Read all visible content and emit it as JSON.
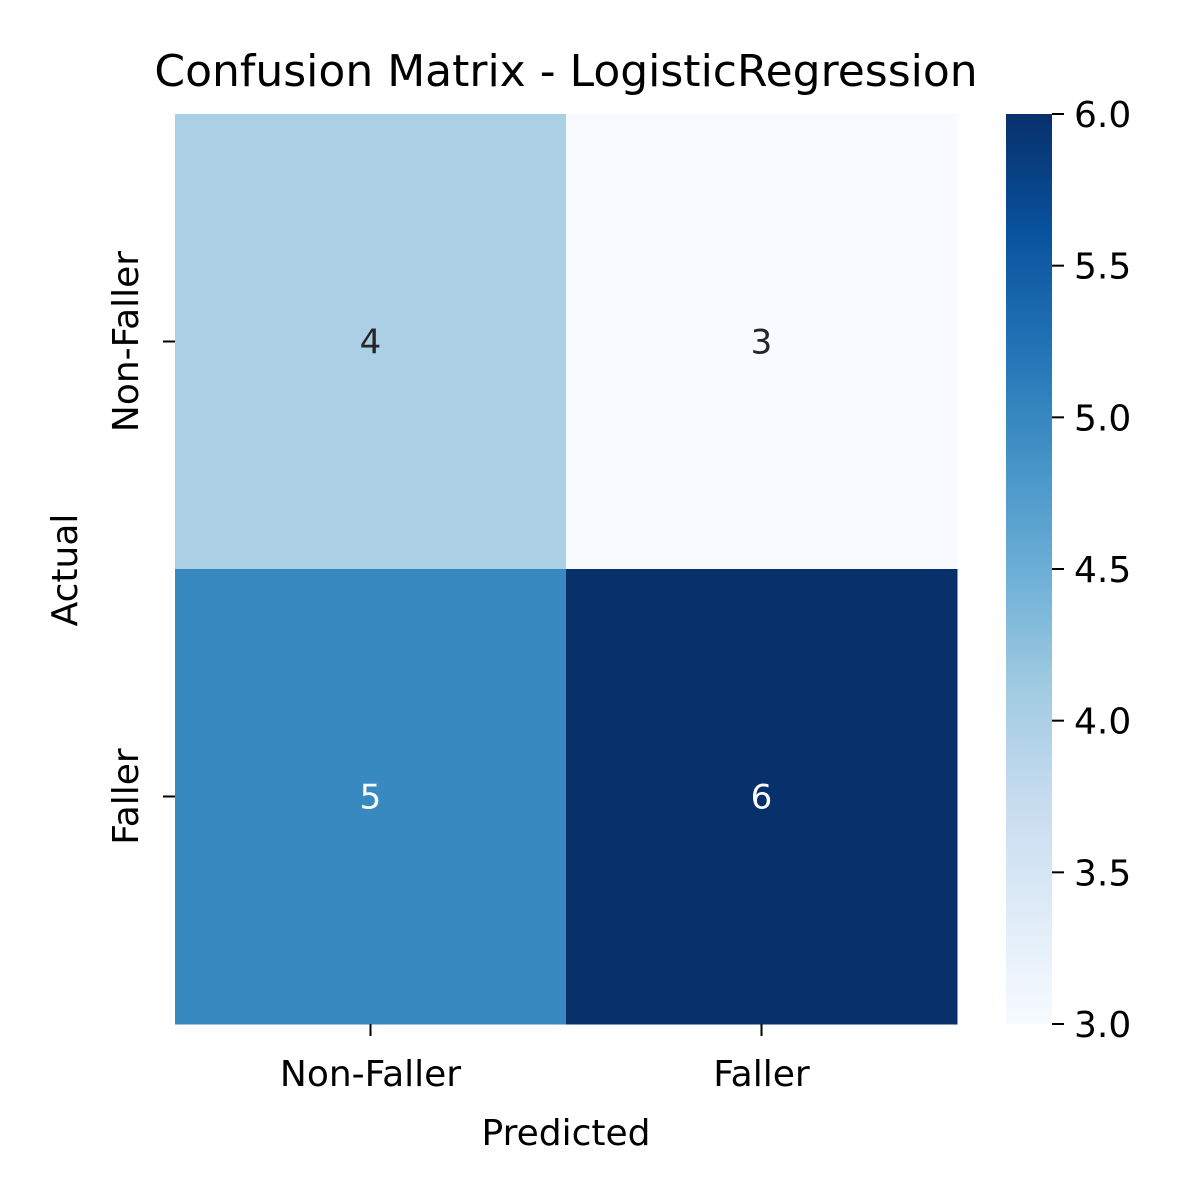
{
  "chart_data": {
    "type": "heatmap",
    "title": "Confusion Matrix - LogisticRegression",
    "xlabel": "Predicted",
    "ylabel": "Actual",
    "x_categories": [
      "Non-Faller",
      "Faller"
    ],
    "y_categories": [
      "Non-Faller",
      "Faller"
    ],
    "values": [
      [
        4,
        3
      ],
      [
        5,
        6
      ]
    ],
    "colormap": "Blues",
    "colorbar": {
      "min": 3.0,
      "max": 6.0,
      "ticks": [
        "3.0",
        "3.5",
        "4.0",
        "4.5",
        "5.0",
        "5.5",
        "6.0"
      ]
    },
    "cell_colors": {
      "4": "#abcfe5",
      "3": "#f7fbff",
      "5": "#3989c1",
      "6": "#08306b"
    },
    "text_colors": {
      "dark": "#262626",
      "light": "#ffffff"
    }
  }
}
